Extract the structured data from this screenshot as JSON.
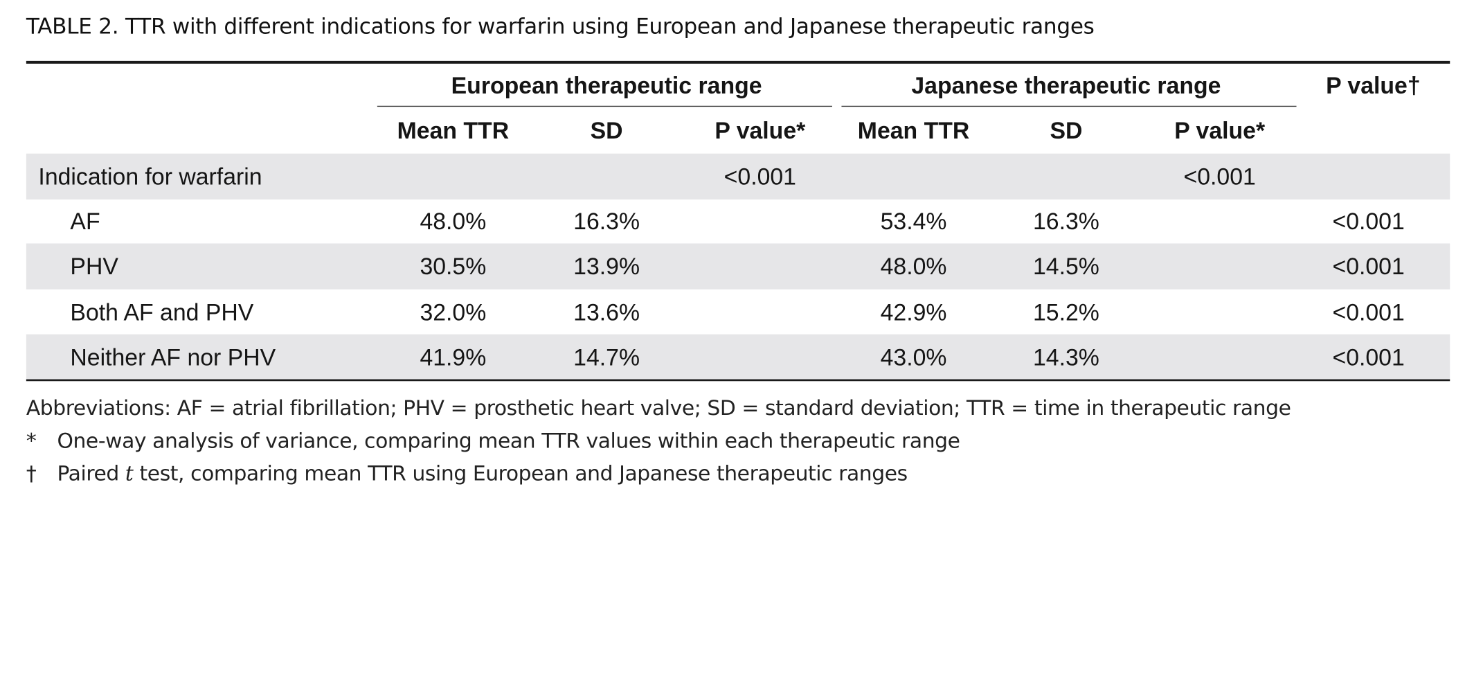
{
  "caption": {
    "label": "TABLE 2.",
    "text": "TTR with different indications for warfarin using European and Japanese therapeutic ranges"
  },
  "header": {
    "european_group": "European therapeutic range",
    "japanese_group": "Japanese therapeutic range",
    "pvalue_paired": "P value†",
    "mean_ttr": "Mean TTR",
    "sd": "SD",
    "pvalue_anova": "P value*"
  },
  "section": {
    "label": "Indication for warfarin",
    "eu_p": "<0.001",
    "jp_p": "<0.001"
  },
  "rows": [
    {
      "label": "AF",
      "eu_mean": "48.0%",
      "eu_sd": "16.3%",
      "jp_mean": "53.4%",
      "jp_sd": "16.3%",
      "p": "<0.001"
    },
    {
      "label": "PHV",
      "eu_mean": "30.5%",
      "eu_sd": "13.9%",
      "jp_mean": "48.0%",
      "jp_sd": "14.5%",
      "p": "<0.001"
    },
    {
      "label": "Both AF and PHV",
      "eu_mean": "32.0%",
      "eu_sd": "13.6%",
      "jp_mean": "42.9%",
      "jp_sd": "15.2%",
      "p": "<0.001"
    },
    {
      "label": "Neither AF nor PHV",
      "eu_mean": "41.9%",
      "eu_sd": "14.7%",
      "jp_mean": "43.0%",
      "jp_sd": "14.3%",
      "p": "<0.001"
    }
  ],
  "footnotes": {
    "abbreviations": "Abbreviations: AF = atrial fibrillation; PHV = prosthetic heart valve; SD = standard deviation; TTR = time in therapeutic range",
    "star_symbol": "*",
    "star_text": "One-way analysis of variance, comparing mean TTR values within each therapeutic range",
    "dagger_symbol": "†",
    "dagger_text_before": "Paired ",
    "dagger_text_italic": "t",
    "dagger_text_after": " test, comparing mean TTR using European and Japanese therapeutic ranges"
  },
  "colors": {
    "band": "#e6e6e8",
    "rule": "#1a1a1a"
  }
}
